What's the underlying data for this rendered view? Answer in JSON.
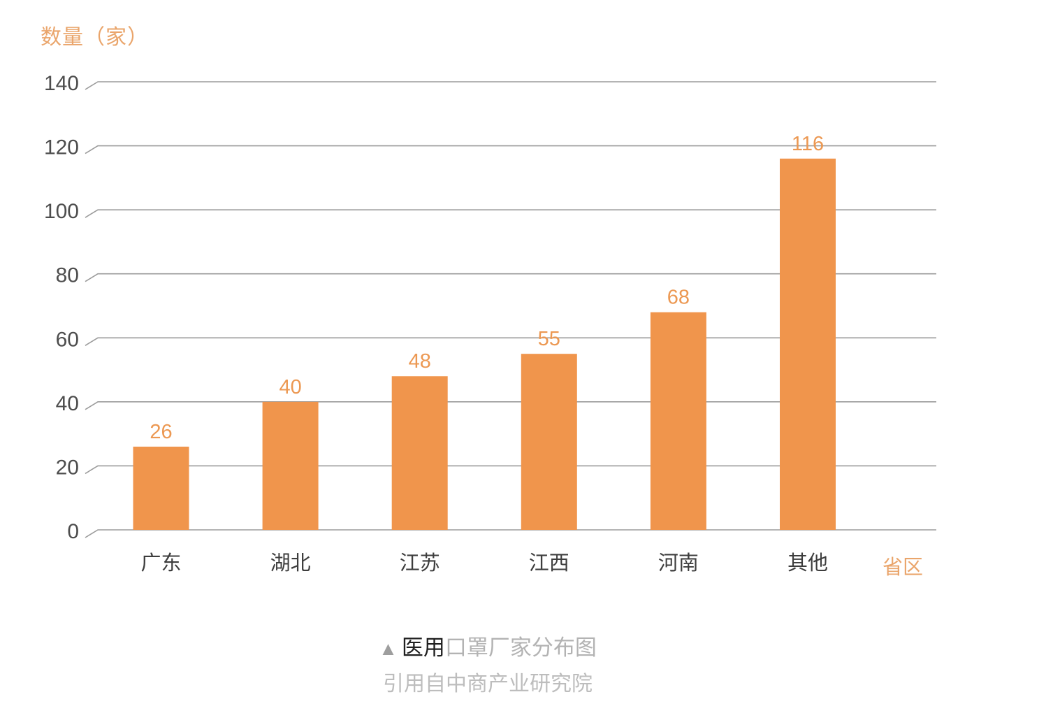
{
  "chart_data": {
    "type": "bar",
    "title": "医用口罩厂家分布图",
    "categories": [
      "广东",
      "湖北",
      "江苏",
      "江西",
      "河南",
      "其他"
    ],
    "values": [
      26,
      40,
      48,
      55,
      68,
      116
    ],
    "xlabel": "省区",
    "ylabel": "数量（家）",
    "ylim": [
      0,
      140
    ],
    "yticks": [
      0,
      20,
      40,
      60,
      80,
      100,
      120,
      140
    ],
    "grid": true,
    "legend": false,
    "colors": {
      "bar": "#F0954C",
      "value_label": "#EC9852",
      "axis_orange": "#EAA56B",
      "ytick": "#4D4D4D",
      "xtick": "#3D3D3D",
      "gridline": "#9B9B9B"
    }
  },
  "caption": {
    "marker": "▲",
    "title_highlight": "医用",
    "title_rest": "口罩厂家分布图",
    "source": "引用自中商产业研究院",
    "colors": {
      "marker": "#9E9E9E",
      "highlight": "#1F1F1F",
      "rest": "#B3B3B3",
      "source": "#BDBDBD"
    }
  }
}
